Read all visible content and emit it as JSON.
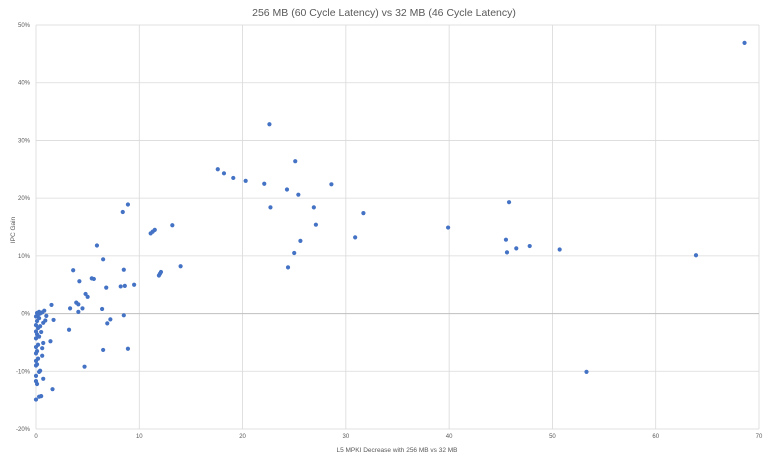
{
  "chart_data": {
    "type": "scatter",
    "title": "256 MB (60 Cycle Latency) vs 32 MB (46 Cycle Latency)",
    "xlabel": "L5 MPKI Decrease with 256 MB vs 32 MB",
    "ylabel": "IPC Gain",
    "xlim": [
      0,
      70
    ],
    "ylim": [
      -20,
      50
    ],
    "x_ticks": [
      "0",
      "10",
      "20",
      "30",
      "40",
      "50",
      "60",
      "70"
    ],
    "y_ticks": [
      "-20%",
      "-10%",
      "0%",
      "10%",
      "20%",
      "30%",
      "40%",
      "50%"
    ],
    "grid": true,
    "legend": "none",
    "marker_color": "#4472c4",
    "grid_color": "#d9d9d9",
    "series": [
      {
        "points": [
          [
            68.6,
            46.9
          ],
          [
            22.6,
            32.8
          ],
          [
            25.1,
            26.4
          ],
          [
            17.6,
            25.0
          ],
          [
            18.2,
            24.3
          ],
          [
            19.1,
            23.5
          ],
          [
            20.3,
            23.0
          ],
          [
            22.1,
            22.5
          ],
          [
            28.6,
            22.4
          ],
          [
            24.3,
            21.5
          ],
          [
            25.4,
            20.6
          ],
          [
            45.8,
            19.3
          ],
          [
            8.9,
            18.9
          ],
          [
            22.7,
            18.4
          ],
          [
            26.9,
            18.4
          ],
          [
            8.4,
            17.6
          ],
          [
            31.7,
            17.4
          ],
          [
            13.2,
            15.3
          ],
          [
            27.1,
            15.4
          ],
          [
            39.9,
            14.9
          ],
          [
            11.5,
            14.5
          ],
          [
            11.3,
            14.2
          ],
          [
            11.1,
            13.9
          ],
          [
            30.9,
            13.2
          ],
          [
            45.5,
            12.8
          ],
          [
            25.6,
            12.6
          ],
          [
            5.9,
            11.8
          ],
          [
            47.8,
            11.7
          ],
          [
            46.5,
            11.3
          ],
          [
            50.7,
            11.1
          ],
          [
            45.6,
            10.6
          ],
          [
            25.0,
            10.5
          ],
          [
            63.9,
            10.1
          ],
          [
            6.5,
            9.4
          ],
          [
            14.0,
            8.2
          ],
          [
            24.4,
            8.0
          ],
          [
            3.6,
            7.5
          ],
          [
            8.5,
            7.6
          ],
          [
            12.1,
            7.2
          ],
          [
            12.0,
            6.9
          ],
          [
            11.9,
            6.6
          ],
          [
            5.4,
            6.1
          ],
          [
            5.6,
            6.0
          ],
          [
            4.2,
            5.6
          ],
          [
            9.5,
            5.0
          ],
          [
            8.6,
            4.8
          ],
          [
            8.2,
            4.7
          ],
          [
            6.8,
            4.5
          ],
          [
            4.8,
            3.4
          ],
          [
            5.0,
            2.9
          ],
          [
            3.9,
            1.9
          ],
          [
            4.1,
            1.6
          ],
          [
            1.5,
            1.5
          ],
          [
            3.3,
            0.9
          ],
          [
            4.5,
            0.9
          ],
          [
            6.4,
            0.8
          ],
          [
            0.8,
            0.5
          ],
          [
            4.1,
            0.3
          ],
          [
            0.3,
            0.3
          ],
          [
            0.6,
            0.2
          ],
          [
            0.1,
            0.1
          ],
          [
            0.4,
            0.0
          ],
          [
            0.2,
            -0.2
          ],
          [
            8.5,
            -0.3
          ],
          [
            1.0,
            -0.4
          ],
          [
            0.0,
            -0.5
          ],
          [
            0.3,
            -0.8
          ],
          [
            7.2,
            -1.0
          ],
          [
            1.7,
            -1.1
          ],
          [
            0.9,
            -1.2
          ],
          [
            0.1,
            -1.3
          ],
          [
            0.7,
            -1.6
          ],
          [
            6.9,
            -1.7
          ],
          [
            0.0,
            -2.0
          ],
          [
            0.4,
            -2.2
          ],
          [
            0.2,
            -2.5
          ],
          [
            3.2,
            -2.8
          ],
          [
            0.0,
            -3.1
          ],
          [
            0.5,
            -3.2
          ],
          [
            0.1,
            -3.6
          ],
          [
            0.3,
            -4.0
          ],
          [
            0.0,
            -4.3
          ],
          [
            1.4,
            -4.8
          ],
          [
            0.7,
            -5.1
          ],
          [
            0.2,
            -5.4
          ],
          [
            0.0,
            -5.8
          ],
          [
            0.6,
            -6.0
          ],
          [
            8.9,
            -6.1
          ],
          [
            6.5,
            -6.3
          ],
          [
            0.1,
            -6.5
          ],
          [
            0.0,
            -6.9
          ],
          [
            0.6,
            -7.3
          ],
          [
            0.2,
            -7.8
          ],
          [
            0.0,
            -8.2
          ],
          [
            0.1,
            -8.8
          ],
          [
            0.0,
            -9.0
          ],
          [
            4.7,
            -9.2
          ],
          [
            0.4,
            -9.9
          ],
          [
            0.3,
            -10.1
          ],
          [
            53.3,
            -10.1
          ],
          [
            0.0,
            -10.8
          ],
          [
            0.7,
            -11.3
          ],
          [
            0.0,
            -11.7
          ],
          [
            0.1,
            -12.2
          ],
          [
            1.6,
            -13.1
          ],
          [
            0.5,
            -14.3
          ],
          [
            0.3,
            -14.4
          ],
          [
            0.0,
            -14.9
          ]
        ]
      }
    ]
  }
}
